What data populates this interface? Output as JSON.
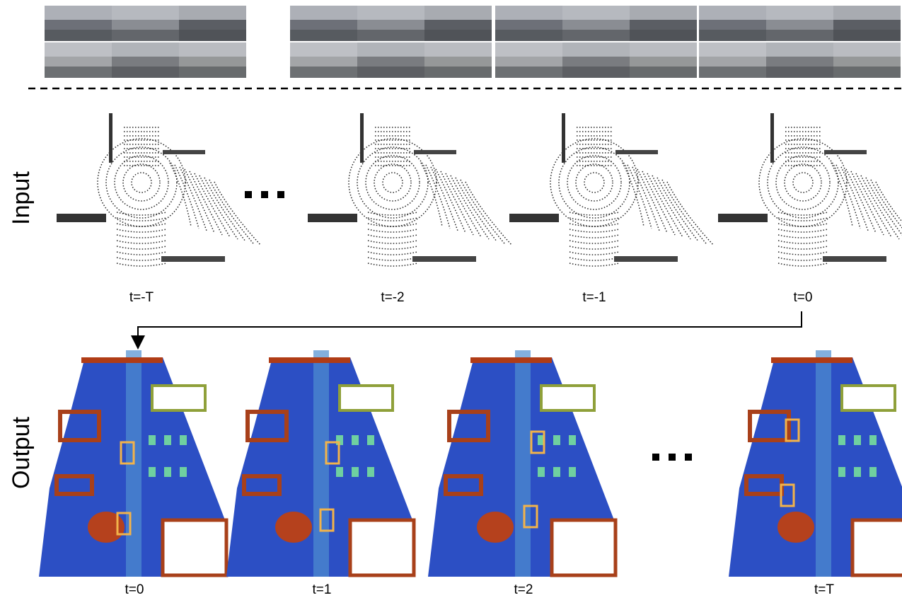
{
  "side_labels": {
    "input": "Input",
    "output": "Output"
  },
  "input_frames": [
    {
      "label": "t=-T"
    },
    {
      "label": "t=-2"
    },
    {
      "label": "t=-1"
    },
    {
      "label": "t=0"
    }
  ],
  "output_frames": [
    {
      "label": "t=0"
    },
    {
      "label": "t=1"
    },
    {
      "label": "t=2"
    },
    {
      "label": "t=T"
    }
  ]
}
